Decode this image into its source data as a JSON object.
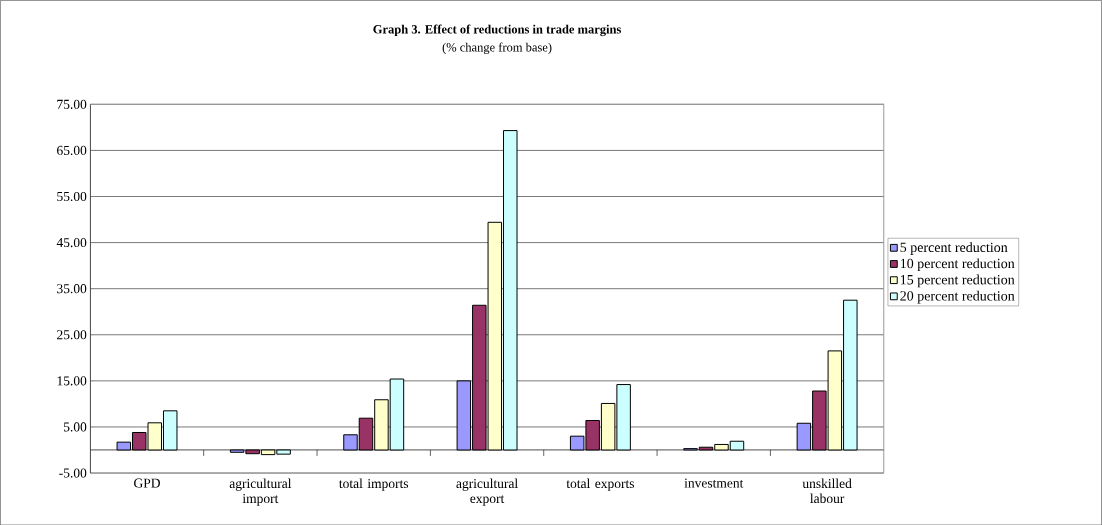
{
  "chart_data": {
    "type": "bar",
    "title": "Graph 3. Effect of reductions in trade margins",
    "subtitle": "(% change from base)",
    "categories": [
      "GPD",
      "agricultural import",
      "total imports",
      "agricultural export",
      "total exports",
      "investment",
      "unskilled labour"
    ],
    "series": [
      {
        "name": "5 percent reduction",
        "color": "#9999ff",
        "values": [
          1.7,
          -0.5,
          3.3,
          15.0,
          3.0,
          0.3,
          5.8
        ]
      },
      {
        "name": "10 percent reduction",
        "color": "#993366",
        "values": [
          3.8,
          -0.8,
          6.9,
          31.4,
          6.4,
          0.6,
          12.8
        ]
      },
      {
        "name": "15 percent reduction",
        "color": "#ffffcc",
        "values": [
          5.9,
          -1.0,
          10.9,
          49.4,
          10.1,
          1.2,
          21.5
        ]
      },
      {
        "name": "20 percent reduction",
        "color": "#ccffff",
        "values": [
          8.5,
          -0.9,
          15.4,
          69.3,
          14.2,
          1.9,
          32.5
        ]
      }
    ],
    "ylim": [
      -5,
      75
    ],
    "yticks": [
      {
        "value": -5,
        "label": "-5.00"
      },
      {
        "value": 5,
        "label": "5.00"
      },
      {
        "value": 15,
        "label": "15.00"
      },
      {
        "value": 25,
        "label": "25.00"
      },
      {
        "value": 35,
        "label": "35.00"
      },
      {
        "value": 45,
        "label": "45.00"
      },
      {
        "value": 55,
        "label": "55.00"
      },
      {
        "value": 65,
        "label": "65.00"
      },
      {
        "value": 75,
        "label": "75.00"
      }
    ],
    "grid": "y",
    "legend": "right"
  }
}
